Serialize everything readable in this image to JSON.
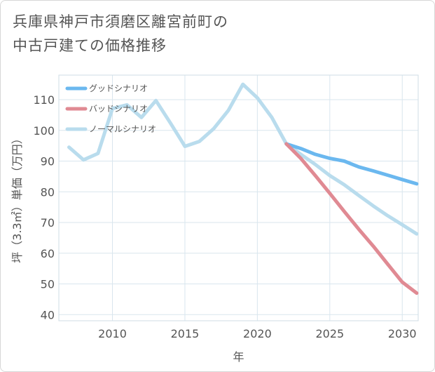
{
  "title_line1": "兵庫県神戸市須磨区離宮前町の",
  "title_line2": "中古戸建ての価格推移",
  "chart_data": {
    "type": "line",
    "xlabel": "年",
    "ylabel": "坪（3.3㎡）単価（万円）",
    "xlim": [
      2006.3,
      2031.1
    ],
    "ylim": [
      38,
      118
    ],
    "xticks": [
      2010,
      2015,
      2020,
      2025,
      2030
    ],
    "yticks": [
      40,
      50,
      60,
      70,
      80,
      90,
      100,
      110
    ],
    "grid": true,
    "legend_position": "top-left",
    "series": [
      {
        "name": "グッドシナリオ",
        "color": "#6bb8ef",
        "x": [
          2022,
          2023,
          2024,
          2025,
          2026,
          2027,
          2028,
          2029,
          2030,
          2031
        ],
        "y": [
          95.6,
          94.1,
          92.2,
          90.9,
          90.0,
          88.1,
          86.8,
          85.4,
          84.0,
          82.6
        ]
      },
      {
        "name": "バッドシナリオ",
        "color": "#e08a93",
        "x": [
          2022,
          2023,
          2024,
          2025,
          2026,
          2027,
          2028,
          2029,
          2030,
          2031
        ],
        "y": [
          95.6,
          90.9,
          85.3,
          79.5,
          73.6,
          67.8,
          62.3,
          56.4,
          50.6,
          47.0
        ]
      },
      {
        "name": "ノーマルシナリオ",
        "color": "#b9dced",
        "x": [
          2007,
          2008,
          2009,
          2010,
          2011,
          2012,
          2013,
          2014,
          2015,
          2016,
          2017,
          2018,
          2019,
          2020,
          2021,
          2022,
          2023,
          2024,
          2025,
          2026,
          2027,
          2028,
          2029,
          2030,
          2031
        ],
        "y": [
          94.5,
          90.4,
          92.5,
          107.1,
          108.3,
          104.2,
          109.7,
          102.4,
          94.8,
          96.4,
          100.6,
          106.5,
          115.0,
          110.6,
          104.2,
          95.6,
          92.2,
          88.9,
          85.3,
          82.3,
          78.8,
          75.4,
          72.2,
          69.3,
          66.3
        ]
      }
    ]
  }
}
